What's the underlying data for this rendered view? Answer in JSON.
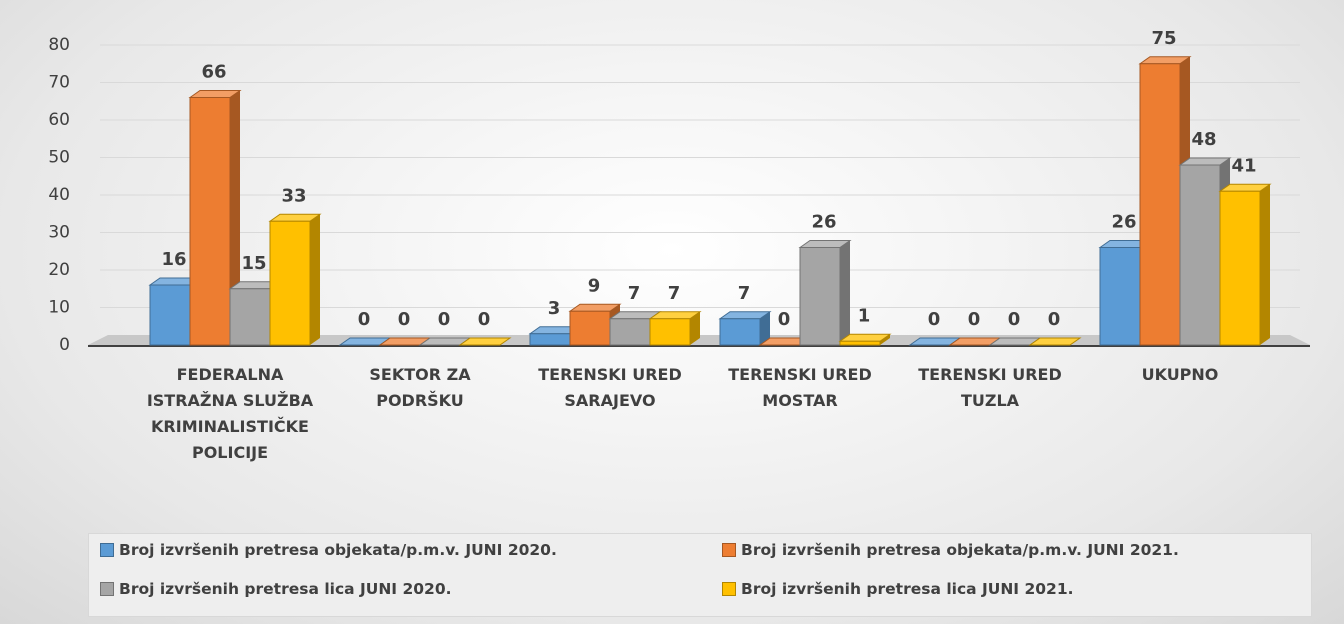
{
  "chart_data": {
    "type": "bar",
    "categories": [
      "FEDERALNA ISTRAŽNA SLUŽBA KRIMINALISTIČKE POLICIJE",
      "SEKTOR ZA PODRŠKU",
      "TERENSKI URED SARAJEVO",
      "TERENSKI URED MOSTAR",
      "TERENSKI URED TUZLA",
      "UKUPNO"
    ],
    "series": [
      {
        "name": "Broj izvršenih pretresa objekata/p.m.v. JUNI 2020.",
        "color": "#5b9bd5",
        "values": [
          16,
          0,
          3,
          7,
          0,
          26
        ]
      },
      {
        "name": "Broj izvršenih pretresa objekata/p.m.v. JUNI 2021.",
        "color": "#ed7d31",
        "values": [
          66,
          0,
          9,
          0,
          0,
          75
        ]
      },
      {
        "name": "Broj izvršenih pretresa lica JUNI 2020.",
        "color": "#a5a5a5",
        "values": [
          15,
          0,
          7,
          26,
          0,
          48
        ]
      },
      {
        "name": "Broj izvršenih pretresa lica JUNI 2021.",
        "color": "#ffc000",
        "values": [
          33,
          0,
          7,
          1,
          0,
          41
        ]
      }
    ],
    "ylim": [
      0,
      80
    ],
    "yticks": [
      0,
      10,
      20,
      30,
      40,
      50,
      60,
      70,
      80
    ],
    "grid": true,
    "legend": "bottom"
  }
}
